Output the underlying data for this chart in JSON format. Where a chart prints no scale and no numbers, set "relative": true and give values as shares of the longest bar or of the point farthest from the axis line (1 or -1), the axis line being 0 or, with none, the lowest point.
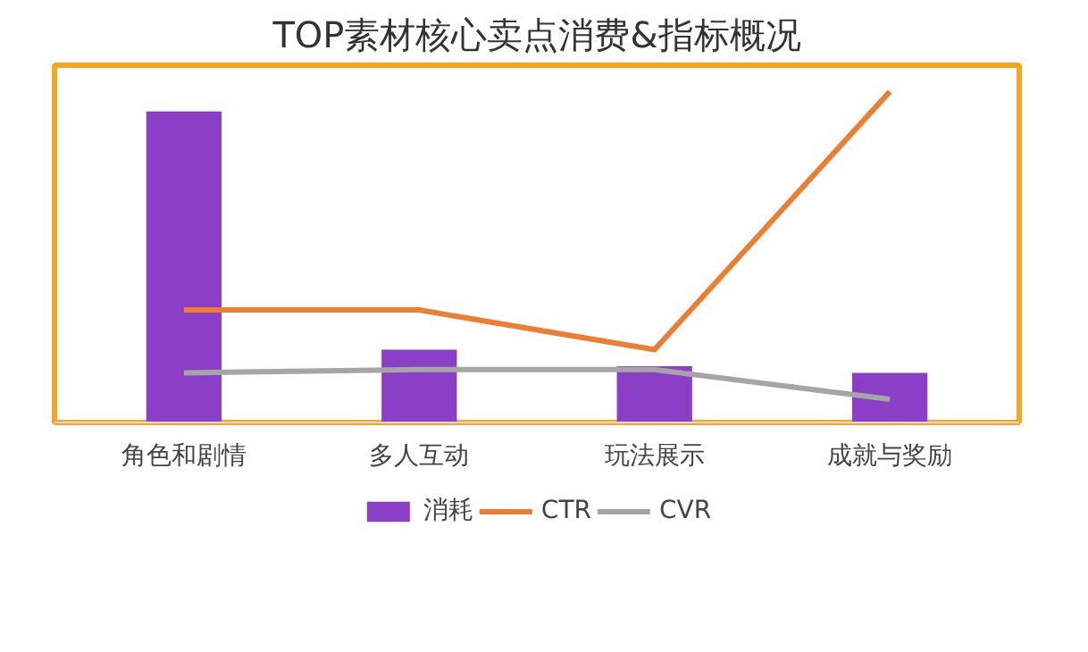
{
  "chart_data": {
    "type": "bar",
    "title": "TOP素材核心卖点消费&指标概况",
    "relative": true,
    "categories": [
      "角色和剧情",
      "多人互动",
      "玩法展示",
      "成就与奖励"
    ],
    "series": [
      {
        "name": "消耗",
        "color": "#8a3fc6",
        "values": [
          0.94,
          0.22,
          0.17,
          0.15
        ]
      },
      {
        "name": "CTR",
        "type": "line",
        "color": "#ed7d31",
        "values": [
          0.34,
          0.34,
          0.22,
          1.0
        ]
      },
      {
        "name": "CVR",
        "type": "line",
        "color": "#a5a5a5",
        "values": [
          0.15,
          0.16,
          0.16,
          0.07
        ]
      }
    ],
    "legend": "bottom",
    "grid": false,
    "marker": "none",
    "line_style": "solid"
  }
}
